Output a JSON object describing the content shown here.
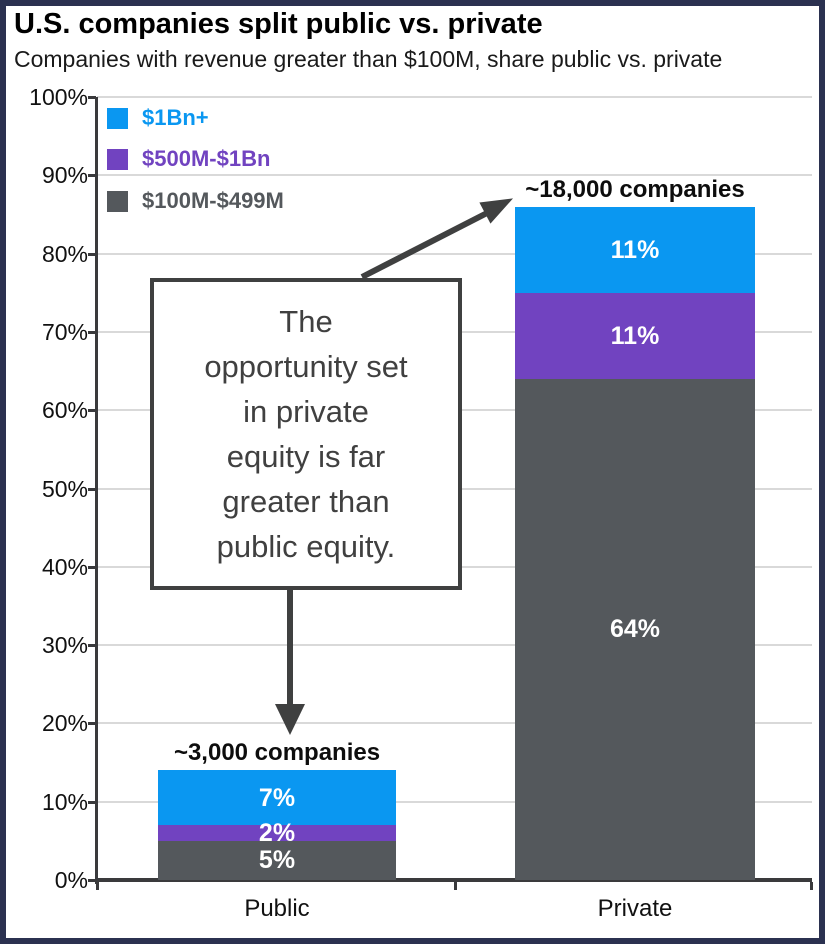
{
  "page": {
    "title": "U.S. companies split public vs. private",
    "subtitle": "Companies with revenue greater than $100M, share public vs. private"
  },
  "colors": {
    "blue": "#0a97f1",
    "purple": "#7143c0",
    "gray": "#54585c",
    "frame_navy": "#2b3150",
    "annotation_dark": "#3f4040",
    "gridline_gray": "#d9d9d9"
  },
  "legend": {
    "items": [
      {
        "label": "$1Bn+",
        "color": "#0a97f1"
      },
      {
        "label": "$500M-$1Bn",
        "color": "#7143c0"
      },
      {
        "label": "$100M-$499M",
        "color": "#54585c"
      }
    ]
  },
  "annotation": {
    "lines": [
      "The",
      "opportunity set",
      "in private",
      "equity is far",
      "greater than",
      "public equity."
    ]
  },
  "chart_data": {
    "type": "bar",
    "stacked": true,
    "title": "U.S. companies split public vs. private",
    "subtitle": "Companies with revenue greater than $100M, share public vs. private",
    "categories": [
      "Public",
      "Private"
    ],
    "series": [
      {
        "name": "$1Bn+",
        "color": "#0a97f1",
        "values": [
          7,
          11
        ]
      },
      {
        "name": "$500M-$1Bn",
        "color": "#7143c0",
        "values": [
          2,
          11
        ]
      },
      {
        "name": "$100M-$499M",
        "color": "#54585c",
        "values": [
          5,
          64
        ]
      }
    ],
    "segment_labels": [
      [
        "7%",
        "2%",
        "5%"
      ],
      [
        "11%",
        "11%",
        "64%"
      ]
    ],
    "bar_totals": [
      14,
      86
    ],
    "bar_count_labels": [
      "~3,000 companies",
      "~18,000 companies"
    ],
    "y_ticks": [
      "100%",
      "90%",
      "80%",
      "70%",
      "60%",
      "50%",
      "40%",
      "30%",
      "20%",
      "10%",
      "0%"
    ],
    "ylim": [
      0,
      100
    ],
    "grid": true,
    "legend_position": "top-left",
    "xlabel": "",
    "ylabel": ""
  }
}
